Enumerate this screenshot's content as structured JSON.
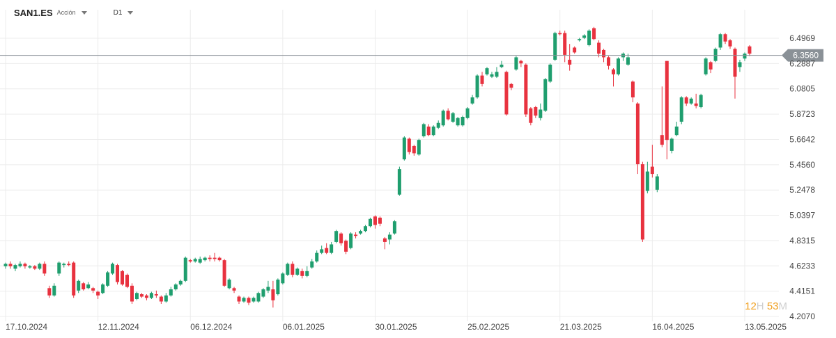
{
  "header": {
    "symbol": "SAN1.ES",
    "instrument_type": "Acción",
    "timeframe": "D1"
  },
  "countdown": {
    "hours": "12",
    "hours_unit": "H",
    "minutes": "53",
    "minutes_unit": "M"
  },
  "colors": {
    "up": "#1f9e6e",
    "down": "#e8323f",
    "grid": "#ececec",
    "current_price_line": "#8a9197",
    "current_price_label_bg": "#8a9197"
  },
  "chart_data": {
    "type": "candlestick",
    "title": "",
    "xlabel": "",
    "ylabel": "",
    "ylim": [
      4.18,
      6.6
    ],
    "grid": true,
    "y_ticks": [
      "6.4969",
      "6.2887",
      "6.0805",
      "5.8723",
      "5.6642",
      "5.4560",
      "5.2478",
      "5.0397",
      "4.8315",
      "4.6233",
      "4.4151",
      "4.2070"
    ],
    "x_ticks": [
      {
        "label": "17.10.2024",
        "index": 0
      },
      {
        "label": "12.11.2024",
        "index": 19
      },
      {
        "label": "06.12.2024",
        "index": 38
      },
      {
        "label": "06.01.2025",
        "index": 57
      },
      {
        "label": "30.01.2025",
        "index": 76
      },
      {
        "label": "25.02.2025",
        "index": 95
      },
      {
        "label": "21.03.2025",
        "index": 114
      },
      {
        "label": "16.04.2025",
        "index": 133
      },
      {
        "label": "13.05.2025",
        "index": 152
      }
    ],
    "current_price": 6.356,
    "current_price_label": "6.3560",
    "candles": [
      [
        4.62,
        4.64,
        4.6,
        4.65
      ],
      [
        4.64,
        4.62,
        4.6,
        4.66
      ],
      [
        4.6,
        4.63,
        4.58,
        4.64
      ],
      [
        4.62,
        4.64,
        4.61,
        4.66
      ],
      [
        4.64,
        4.62,
        4.6,
        4.65
      ],
      [
        4.61,
        4.62,
        4.6,
        4.63
      ],
      [
        4.62,
        4.6,
        4.59,
        4.63
      ],
      [
        4.6,
        4.64,
        4.59,
        4.65
      ],
      [
        4.64,
        4.56,
        4.54,
        4.66
      ],
      [
        4.44,
        4.38,
        4.36,
        4.46
      ],
      [
        4.38,
        4.46,
        4.37,
        4.48
      ],
      [
        4.56,
        4.65,
        4.54,
        4.66
      ],
      [
        4.63,
        4.64,
        4.61,
        4.65
      ],
      [
        4.64,
        4.63,
        4.62,
        4.66
      ],
      [
        4.65,
        4.38,
        4.36,
        4.66
      ],
      [
        4.42,
        4.5,
        4.4,
        4.51
      ],
      [
        4.48,
        4.43,
        4.42,
        4.49
      ],
      [
        4.44,
        4.47,
        4.43,
        4.49
      ],
      [
        4.44,
        4.42,
        4.4,
        4.45
      ],
      [
        4.41,
        4.38,
        4.35,
        4.42
      ],
      [
        4.4,
        4.47,
        4.39,
        4.48
      ],
      [
        4.46,
        4.57,
        4.45,
        4.58
      ],
      [
        4.56,
        4.64,
        4.55,
        4.65
      ],
      [
        4.63,
        4.49,
        4.47,
        4.64
      ],
      [
        4.58,
        4.47,
        4.46,
        4.59
      ],
      [
        4.55,
        4.45,
        4.44,
        4.56
      ],
      [
        4.46,
        4.33,
        4.31,
        4.48
      ],
      [
        4.35,
        4.4,
        4.34,
        4.41
      ],
      [
        4.39,
        4.37,
        4.36,
        4.4
      ],
      [
        4.38,
        4.36,
        4.34,
        4.39
      ],
      [
        4.36,
        4.4,
        4.35,
        4.41
      ],
      [
        4.39,
        4.38,
        4.36,
        4.42
      ],
      [
        4.37,
        4.33,
        4.31,
        4.38
      ],
      [
        4.33,
        4.38,
        4.32,
        4.4
      ],
      [
        4.38,
        4.43,
        4.37,
        4.45
      ],
      [
        4.43,
        4.47,
        4.42,
        4.48
      ],
      [
        4.47,
        4.5,
        4.46,
        4.51
      ],
      [
        4.5,
        4.69,
        4.49,
        4.7
      ],
      [
        4.67,
        4.66,
        4.65,
        4.68
      ],
      [
        4.66,
        4.68,
        4.65,
        4.69
      ],
      [
        4.65,
        4.68,
        4.64,
        4.7
      ],
      [
        4.67,
        4.69,
        4.66,
        4.7
      ],
      [
        4.69,
        4.68,
        4.66,
        4.71
      ],
      [
        4.69,
        4.68,
        4.66,
        4.73
      ],
      [
        4.69,
        4.67,
        4.66,
        4.7
      ],
      [
        4.67,
        4.46,
        4.45,
        4.68
      ],
      [
        4.44,
        4.51,
        4.43,
        4.52
      ],
      [
        4.44,
        4.42,
        4.4,
        4.45
      ],
      [
        4.37,
        4.33,
        4.31,
        4.38
      ],
      [
        4.33,
        4.36,
        4.32,
        4.37
      ],
      [
        4.36,
        4.32,
        4.3,
        4.37
      ],
      [
        4.33,
        4.36,
        4.32,
        4.37
      ],
      [
        4.33,
        4.4,
        4.32,
        4.41
      ],
      [
        4.37,
        4.43,
        4.36,
        4.44
      ],
      [
        4.42,
        4.45,
        4.4,
        4.5
      ],
      [
        4.43,
        4.34,
        4.28,
        4.5
      ],
      [
        4.39,
        4.51,
        4.38,
        4.52
      ],
      [
        4.48,
        4.56,
        4.47,
        4.57
      ],
      [
        4.55,
        4.64,
        4.54,
        4.65
      ],
      [
        4.64,
        4.55,
        4.53,
        4.66
      ],
      [
        4.55,
        4.6,
        4.54,
        4.61
      ],
      [
        4.58,
        4.54,
        4.52,
        4.6
      ],
      [
        4.54,
        4.58,
        4.53,
        4.62
      ],
      [
        4.61,
        4.66,
        4.6,
        4.68
      ],
      [
        4.66,
        4.73,
        4.65,
        4.75
      ],
      [
        4.73,
        4.76,
        4.72,
        4.79
      ],
      [
        4.77,
        4.73,
        4.72,
        4.81
      ],
      [
        4.73,
        4.8,
        4.72,
        4.82
      ],
      [
        4.82,
        4.91,
        4.81,
        4.92
      ],
      [
        4.89,
        4.81,
        4.79,
        4.9
      ],
      [
        4.83,
        4.74,
        4.72,
        4.84
      ],
      [
        4.77,
        4.89,
        4.76,
        4.9
      ],
      [
        4.88,
        4.87,
        4.85,
        4.9
      ],
      [
        4.89,
        4.91,
        4.88,
        4.92
      ],
      [
        4.91,
        4.95,
        4.9,
        4.96
      ],
      [
        4.95,
        5.01,
        4.94,
        5.02
      ],
      [
        5.03,
        4.96,
        4.93,
        5.04
      ],
      [
        5.02,
        4.97,
        4.95,
        5.03
      ],
      [
        4.85,
        4.82,
        4.76,
        4.86
      ],
      [
        4.84,
        4.88,
        4.8,
        4.9
      ],
      [
        4.89,
        4.99,
        4.88,
        5.0
      ],
      [
        5.21,
        5.42,
        5.2,
        5.44
      ],
      [
        5.5,
        5.68,
        5.49,
        5.69
      ],
      [
        5.67,
        5.56,
        5.54,
        5.68
      ],
      [
        5.61,
        5.55,
        5.53,
        5.62
      ],
      [
        5.54,
        5.66,
        5.53,
        5.67
      ],
      [
        5.69,
        5.79,
        5.68,
        5.8
      ],
      [
        5.77,
        5.7,
        5.69,
        5.79
      ],
      [
        5.7,
        5.77,
        5.69,
        5.78
      ],
      [
        5.76,
        5.8,
        5.75,
        5.82
      ],
      [
        5.78,
        5.9,
        5.77,
        5.91
      ],
      [
        5.9,
        5.83,
        5.82,
        5.92
      ],
      [
        5.81,
        5.88,
        5.8,
        5.89
      ],
      [
        5.78,
        5.84,
        5.77,
        5.85
      ],
      [
        5.78,
        5.85,
        5.77,
        5.86
      ],
      [
        5.84,
        5.92,
        5.83,
        5.93
      ],
      [
        5.96,
        6.01,
        5.95,
        6.03
      ],
      [
        6.01,
        6.19,
        6.0,
        6.2
      ],
      [
        6.19,
        6.12,
        6.1,
        6.22
      ],
      [
        6.2,
        6.25,
        6.19,
        6.26
      ],
      [
        6.18,
        6.2,
        6.17,
        6.22
      ],
      [
        6.18,
        6.22,
        6.17,
        6.26
      ],
      [
        6.26,
        6.28,
        6.25,
        6.31
      ],
      [
        6.22,
        5.87,
        5.86,
        6.23
      ],
      [
        6.12,
        6.09,
        6.07,
        6.13
      ],
      [
        6.24,
        6.34,
        6.23,
        6.35
      ],
      [
        6.31,
        6.29,
        6.26,
        6.32
      ],
      [
        6.28,
        5.87,
        5.85,
        6.29
      ],
      [
        5.92,
        5.8,
        5.78,
        5.93
      ],
      [
        5.93,
        5.86,
        5.84,
        5.94
      ],
      [
        5.84,
        5.91,
        5.82,
        5.96
      ],
      [
        5.9,
        6.16,
        5.89,
        6.17
      ],
      [
        6.14,
        6.28,
        6.13,
        6.29
      ],
      [
        6.32,
        6.54,
        6.31,
        6.55
      ],
      [
        6.54,
        6.53,
        6.52,
        6.56
      ],
      [
        6.54,
        6.36,
        6.3,
        6.56
      ],
      [
        6.32,
        6.28,
        6.23,
        6.45
      ],
      [
        6.42,
        6.38,
        6.37,
        6.43
      ],
      [
        6.48,
        6.49,
        6.47,
        6.5
      ],
      [
        6.5,
        6.52,
        6.49,
        6.53
      ],
      [
        6.44,
        6.56,
        6.43,
        6.57
      ],
      [
        6.58,
        6.49,
        6.48,
        6.59
      ],
      [
        6.46,
        6.37,
        6.34,
        6.48
      ],
      [
        6.4,
        6.34,
        6.3,
        6.41
      ],
      [
        6.34,
        6.27,
        6.24,
        6.35
      ],
      [
        6.24,
        6.2,
        6.1,
        6.25
      ],
      [
        6.2,
        6.33,
        6.19,
        6.34
      ],
      [
        6.34,
        6.37,
        6.31,
        6.38
      ],
      [
        6.28,
        6.34,
        6.27,
        6.37
      ],
      [
        6.14,
        6.01,
        5.97,
        6.15
      ],
      [
        5.96,
        5.46,
        5.38,
        5.97
      ],
      [
        5.46,
        4.84,
        4.82,
        5.48
      ],
      [
        5.24,
        5.4,
        5.22,
        5.48
      ],
      [
        5.44,
        5.38,
        5.35,
        5.62
      ],
      [
        5.25,
        5.36,
        5.23,
        5.38
      ],
      [
        5.7,
        5.62,
        5.6,
        6.1
      ],
      [
        6.31,
        5.66,
        5.5,
        6.31
      ],
      [
        5.57,
        5.67,
        5.55,
        5.68
      ],
      [
        5.7,
        5.77,
        5.69,
        5.81
      ],
      [
        5.81,
        6.01,
        5.79,
        6.02
      ],
      [
        6.01,
        5.96,
        5.94,
        6.02
      ],
      [
        5.96,
        6.0,
        5.95,
        6.01
      ],
      [
        5.96,
        5.94,
        5.92,
        6.04
      ],
      [
        5.93,
        6.03,
        5.92,
        6.04
      ],
      [
        6.2,
        6.33,
        6.19,
        6.34
      ],
      [
        6.3,
        6.24,
        6.21,
        6.31
      ],
      [
        6.31,
        6.41,
        6.3,
        6.42
      ],
      [
        6.42,
        6.53,
        6.4,
        6.54
      ],
      [
        6.53,
        6.47,
        6.45,
        6.54
      ],
      [
        6.48,
        6.43,
        6.41,
        6.49
      ],
      [
        6.41,
        6.18,
        6.0,
        6.42
      ],
      [
        6.26,
        6.3,
        6.22,
        6.32
      ],
      [
        6.33,
        6.37,
        6.31,
        6.38
      ],
      [
        6.43,
        6.37,
        6.35,
        6.44
      ]
    ]
  }
}
